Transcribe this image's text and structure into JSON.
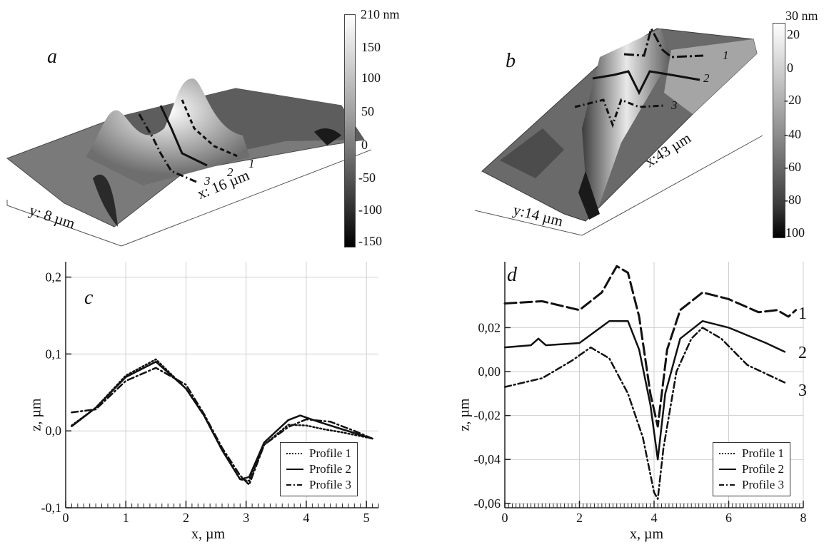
{
  "panel_a": {
    "letter": "a",
    "y_size": "y: 8 µm",
    "x_size": "x: 16 µm",
    "profile_labels": [
      "1",
      "2",
      "3"
    ],
    "colorbar": {
      "top": "210 nm",
      "ticks": [
        "150",
        "100",
        "50",
        "0",
        "-50",
        "-100",
        "-150"
      ]
    }
  },
  "panel_b": {
    "letter": "b",
    "y_size": "y:14 µm",
    "x_size": "x:43 µm",
    "profile_labels": [
      "1",
      "2",
      "3"
    ],
    "colorbar": {
      "top": "30 nm",
      "ticks": [
        "20",
        "0",
        "-20",
        "-40",
        "-60",
        "-80",
        "-100"
      ]
    }
  },
  "chart_data": [
    {
      "panel": "c",
      "type": "line",
      "xlabel": "x, µm",
      "ylabel": "z, µm",
      "xlim": [
        0,
        5.2
      ],
      "ylim": [
        -0.1,
        0.22
      ],
      "xticks": [
        "0",
        "1",
        "2",
        "3",
        "4",
        "5"
      ],
      "yticks": [
        "-0,1",
        "0,0",
        "0,1",
        "0,2"
      ],
      "grid": true,
      "legend_position": "bottom-right",
      "series": [
        {
          "name": "Profile 1",
          "style": "dotted",
          "x": [
            0.1,
            0.5,
            1.0,
            1.5,
            2.0,
            2.3,
            2.6,
            2.9,
            3.05,
            3.3,
            3.7,
            4.0,
            4.3,
            4.6,
            5.1
          ],
          "y": [
            0.007,
            0.03,
            0.072,
            0.093,
            0.055,
            0.02,
            -0.025,
            -0.063,
            -0.065,
            -0.018,
            0.008,
            0.007,
            0.002,
            -0.002,
            -0.01
          ]
        },
        {
          "name": "Profile 2",
          "style": "solid",
          "x": [
            0.1,
            0.5,
            1.0,
            1.5,
            2.0,
            2.3,
            2.6,
            2.9,
            3.05,
            3.3,
            3.7,
            3.9,
            4.2,
            4.6,
            5.1
          ],
          "y": [
            0.006,
            0.03,
            0.07,
            0.09,
            0.055,
            0.02,
            -0.025,
            -0.063,
            -0.06,
            -0.015,
            0.014,
            0.02,
            0.012,
            0.002,
            -0.01
          ]
        },
        {
          "name": "Profile 3",
          "style": "dash-dot",
          "x": [
            0.1,
            0.5,
            1.0,
            1.5,
            2.0,
            2.3,
            2.6,
            2.9,
            3.05,
            3.3,
            3.7,
            4.0,
            4.4,
            4.8,
            5.1
          ],
          "y": [
            0.024,
            0.028,
            0.065,
            0.082,
            0.06,
            0.022,
            -0.022,
            -0.058,
            -0.07,
            -0.018,
            0.005,
            0.015,
            0.012,
            0.0,
            -0.01
          ]
        }
      ]
    },
    {
      "panel": "d",
      "type": "line",
      "xlabel": "x, µm",
      "ylabel": "z, µm",
      "xlim": [
        0,
        8
      ],
      "ylim": [
        -0.062,
        0.05
      ],
      "xticks": [
        "0",
        "2",
        "4",
        "6",
        "8"
      ],
      "yticks": [
        "-0,06",
        "-0,04",
        "-0,02",
        "0,00",
        "0,02"
      ],
      "grid": true,
      "legend_position": "bottom-right",
      "curve_labels": [
        "1",
        "2",
        "3"
      ],
      "series": [
        {
          "name": "Profile 1",
          "style": "long-dash",
          "x": [
            0,
            1.0,
            2.0,
            2.6,
            3.0,
            3.3,
            3.6,
            3.9,
            4.1,
            4.35,
            4.7,
            5.3,
            6.0,
            6.8,
            7.3,
            7.6,
            7.8
          ],
          "y": [
            0.031,
            0.032,
            0.028,
            0.036,
            0.048,
            0.045,
            0.025,
            -0.01,
            -0.025,
            0.01,
            0.028,
            0.036,
            0.033,
            0.027,
            0.028,
            0.025,
            0.028
          ]
        },
        {
          "name": "Profile 2",
          "style": "solid",
          "x": [
            0,
            0.7,
            0.9,
            1.1,
            2.0,
            2.8,
            3.3,
            3.6,
            3.9,
            4.1,
            4.3,
            4.7,
            5.3,
            6.0,
            7.0,
            7.5
          ],
          "y": [
            0.011,
            0.012,
            0.015,
            0.012,
            0.013,
            0.023,
            0.023,
            0.01,
            -0.015,
            -0.04,
            -0.01,
            0.015,
            0.023,
            0.02,
            0.013,
            0.009
          ]
        },
        {
          "name": "Profile 3",
          "style": "dash-dot",
          "x": [
            0,
            1.0,
            1.8,
            2.3,
            2.8,
            3.3,
            3.7,
            4.0,
            4.1,
            4.25,
            4.6,
            5.0,
            5.3,
            5.8,
            6.5,
            7.5
          ],
          "y": [
            -0.007,
            -0.003,
            0.005,
            0.011,
            0.006,
            -0.01,
            -0.03,
            -0.055,
            -0.058,
            -0.035,
            0.0,
            0.015,
            0.02,
            0.015,
            0.003,
            -0.005
          ]
        }
      ]
    }
  ]
}
